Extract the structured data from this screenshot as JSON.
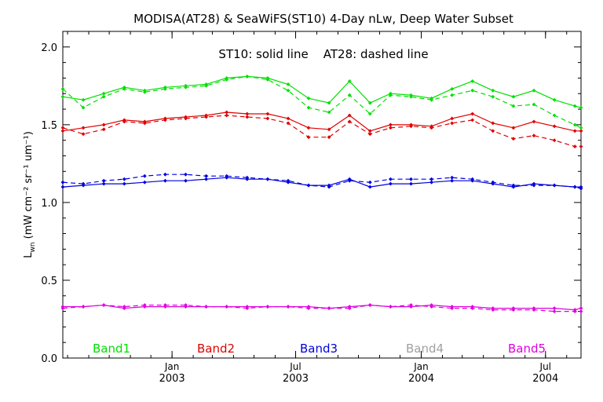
{
  "chart_data": {
    "type": "line",
    "title": "MODISA(AT28) & SeaWiFS(ST10) 4-Day nLw, Deep Water Subset",
    "annotation": "ST10: solid line    AT28: dashed line",
    "ylabel_main": "L",
    "ylabel_sub": "wn",
    "ylabel_units": "(mW cm⁻² sr⁻¹ um⁻¹)",
    "ylim": [
      0.0,
      2.1
    ],
    "yticks": [
      "0.0",
      "0.5",
      "1.0",
      "1.5",
      "2.0"
    ],
    "xlim": [
      "2002-07-25",
      "2004-08-22"
    ],
    "xticks": [
      {
        "date": "2003-01-01",
        "month": "Jan",
        "year": "2003"
      },
      {
        "date": "2003-07-01",
        "month": "Jul",
        "year": "2003"
      },
      {
        "date": "2004-01-01",
        "month": "Jan",
        "year": "2004"
      },
      {
        "date": "2004-07-01",
        "month": "Jul",
        "year": "2004"
      }
    ],
    "x": [
      "2002-07-25",
      "2002-08-24",
      "2002-09-23",
      "2002-10-23",
      "2002-11-22",
      "2002-12-22",
      "2003-01-21",
      "2003-02-20",
      "2003-03-22",
      "2003-04-21",
      "2003-05-21",
      "2003-06-20",
      "2003-07-20",
      "2003-08-19",
      "2003-09-18",
      "2003-10-18",
      "2003-11-17",
      "2003-12-17",
      "2004-01-16",
      "2004-02-15",
      "2004-03-16",
      "2004-04-15",
      "2004-05-15",
      "2004-06-14",
      "2004-07-14",
      "2004-08-13",
      "2004-08-22"
    ],
    "series": [
      {
        "name": "Band1",
        "color": "#00e000",
        "style": "solid",
        "values": [
          1.68,
          1.66,
          1.7,
          1.74,
          1.72,
          1.74,
          1.75,
          1.76,
          1.8,
          1.81,
          1.8,
          1.76,
          1.67,
          1.64,
          1.78,
          1.64,
          1.7,
          1.69,
          1.67,
          1.73,
          1.78,
          1.72,
          1.68,
          1.72,
          1.66,
          1.62,
          1.61
        ]
      },
      {
        "name": "Band1",
        "color": "#00e000",
        "style": "dashed",
        "values": [
          1.73,
          1.61,
          1.68,
          1.73,
          1.71,
          1.73,
          1.74,
          1.75,
          1.79,
          1.81,
          1.79,
          1.72,
          1.61,
          1.58,
          1.69,
          1.57,
          1.69,
          1.68,
          1.66,
          1.69,
          1.72,
          1.68,
          1.62,
          1.63,
          1.56,
          1.5,
          1.48
        ]
      },
      {
        "name": "Band2",
        "color": "#e00000",
        "style": "solid",
        "values": [
          1.46,
          1.48,
          1.5,
          1.53,
          1.52,
          1.54,
          1.55,
          1.56,
          1.58,
          1.57,
          1.57,
          1.54,
          1.48,
          1.47,
          1.56,
          1.46,
          1.5,
          1.5,
          1.49,
          1.54,
          1.57,
          1.51,
          1.48,
          1.52,
          1.49,
          1.46,
          1.46
        ]
      },
      {
        "name": "Band2",
        "color": "#e00000",
        "style": "dashed",
        "values": [
          1.48,
          1.44,
          1.47,
          1.52,
          1.51,
          1.53,
          1.54,
          1.55,
          1.56,
          1.55,
          1.54,
          1.51,
          1.42,
          1.42,
          1.52,
          1.44,
          1.48,
          1.49,
          1.48,
          1.51,
          1.53,
          1.46,
          1.41,
          1.43,
          1.4,
          1.36,
          1.36
        ]
      },
      {
        "name": "Band3",
        "color": "#0000e0",
        "style": "solid",
        "values": [
          1.1,
          1.11,
          1.12,
          1.12,
          1.13,
          1.14,
          1.14,
          1.15,
          1.16,
          1.15,
          1.15,
          1.13,
          1.11,
          1.11,
          1.15,
          1.1,
          1.12,
          1.12,
          1.13,
          1.14,
          1.14,
          1.12,
          1.1,
          1.12,
          1.11,
          1.1,
          1.1
        ]
      },
      {
        "name": "Band3",
        "color": "#0000e0",
        "style": "dashed",
        "values": [
          1.13,
          1.12,
          1.14,
          1.15,
          1.17,
          1.18,
          1.18,
          1.17,
          1.17,
          1.16,
          1.15,
          1.14,
          1.11,
          1.1,
          1.14,
          1.13,
          1.15,
          1.15,
          1.15,
          1.16,
          1.15,
          1.13,
          1.11,
          1.11,
          1.11,
          1.1,
          1.09
        ]
      },
      {
        "name": "Band5",
        "color": "#e000e0",
        "style": "solid",
        "values": [
          0.33,
          0.33,
          0.34,
          0.32,
          0.33,
          0.33,
          0.33,
          0.33,
          0.33,
          0.33,
          0.33,
          0.33,
          0.33,
          0.32,
          0.33,
          0.34,
          0.33,
          0.33,
          0.34,
          0.33,
          0.33,
          0.32,
          0.32,
          0.32,
          0.32,
          0.31,
          0.32
        ]
      },
      {
        "name": "Band5",
        "color": "#e000e0",
        "style": "dashed",
        "values": [
          0.32,
          0.33,
          0.34,
          0.33,
          0.34,
          0.34,
          0.34,
          0.33,
          0.33,
          0.32,
          0.33,
          0.33,
          0.32,
          0.32,
          0.32,
          0.34,
          0.33,
          0.34,
          0.33,
          0.32,
          0.32,
          0.31,
          0.31,
          0.31,
          0.3,
          0.3,
          0.3
        ]
      }
    ],
    "legend": [
      {
        "label": "Band1",
        "color": "#00e000"
      },
      {
        "label": "Band2",
        "color": "#e00000"
      },
      {
        "label": "Band3",
        "color": "#0000e0"
      },
      {
        "label": "Band4",
        "color": "#a0a0a0"
      },
      {
        "label": "Band5",
        "color": "#e000e0"
      }
    ],
    "legend_placement": "bottom-inside",
    "grid": false
  }
}
